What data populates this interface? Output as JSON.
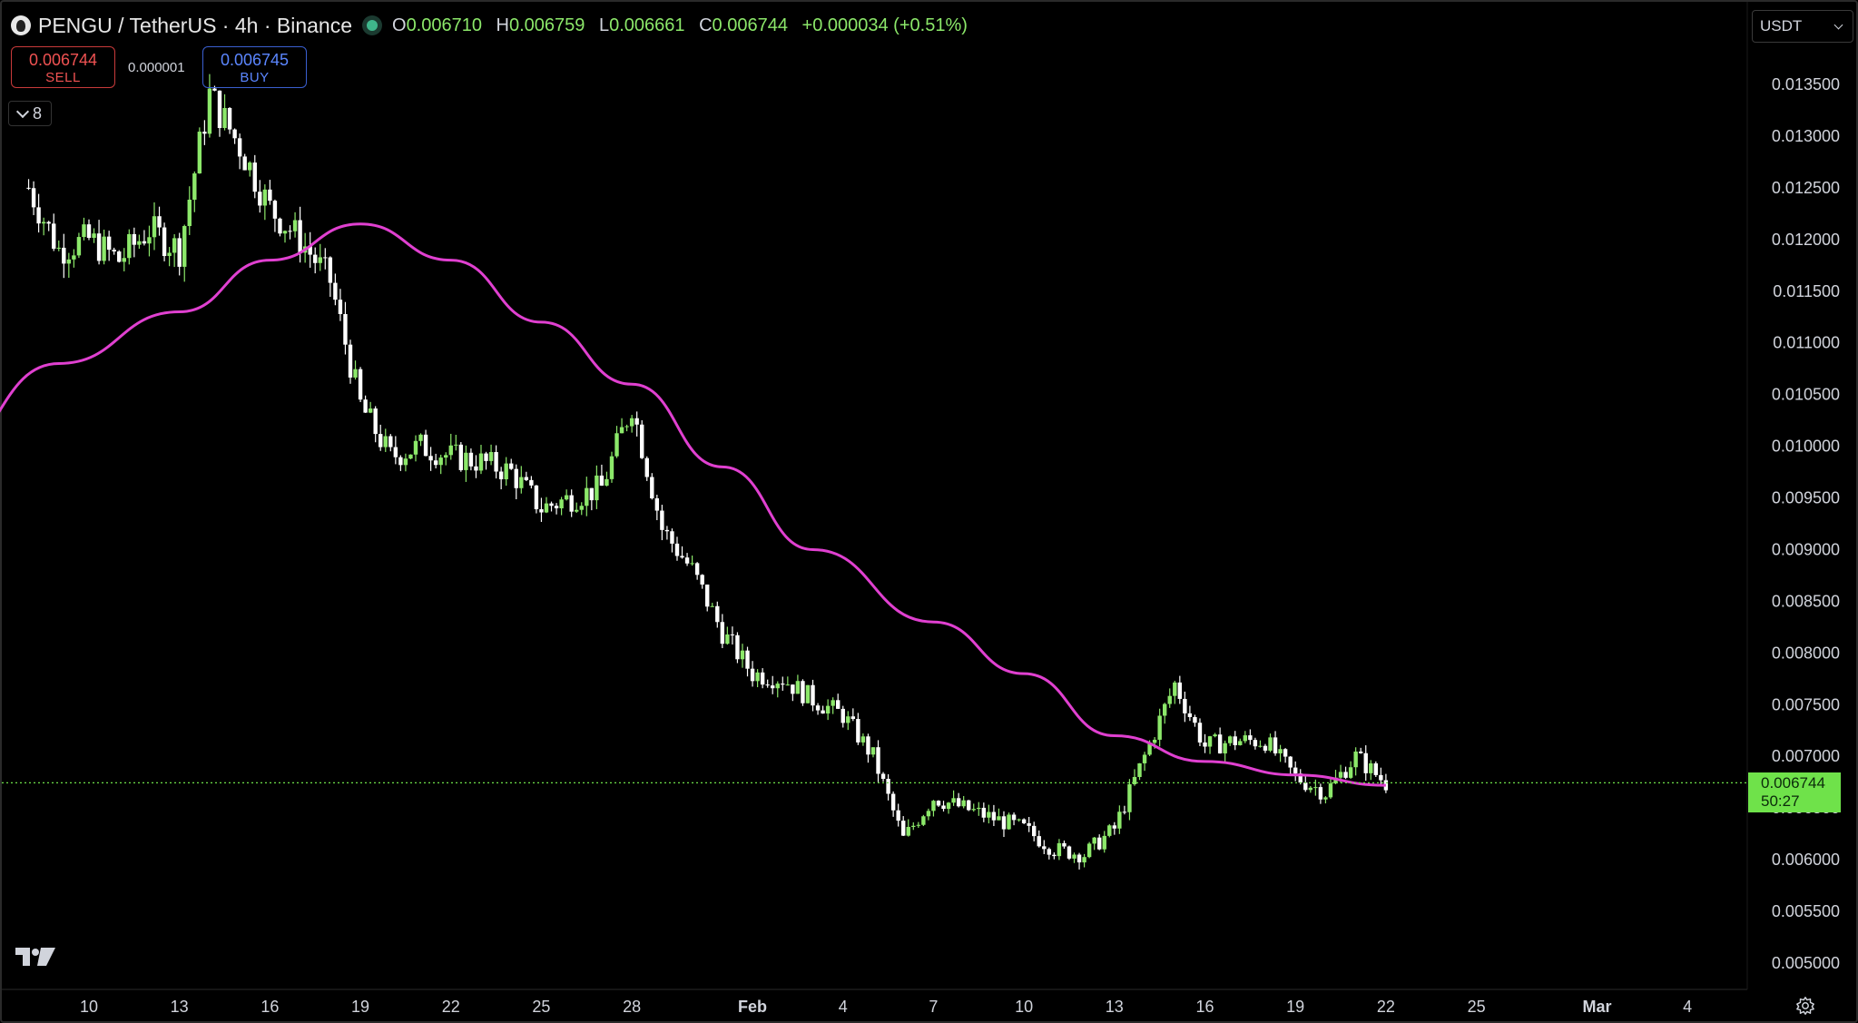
{
  "header": {
    "title": "PENGU / TetherUS · 4h · Binance",
    "ohlc": {
      "o_label": "O",
      "o": "0.006710",
      "h_label": "H",
      "h": "0.006759",
      "l_label": "L",
      "l": "0.006661",
      "c_label": "C",
      "c": "0.006744",
      "change": "+0.000034 (+0.51%)"
    }
  },
  "trade": {
    "sell_price": "0.006744",
    "sell_label": "SELL",
    "spread": "0.000001",
    "buy_price": "0.006745",
    "buy_label": "BUY"
  },
  "indicators_toggle": {
    "count": "8"
  },
  "currency_select": {
    "value": "USDT"
  },
  "last_price_tag": {
    "price": "0.006744",
    "countdown": "50:27"
  },
  "icons": {
    "logo": "pengu-logo-icon",
    "brand": "tradingview-logo-icon",
    "settings": "settings-gear-icon",
    "dropdown": "chevron-down-icon"
  },
  "colors": {
    "up": "#8ce86a",
    "down": "#ffffff",
    "ma": "#e040d0",
    "sell": "#f05252",
    "buy": "#5b86ff",
    "price_tag": "#6fe24a"
  },
  "chart_data": {
    "type": "candlestick",
    "symbol": "PENGU / TetherUS",
    "interval": "4h",
    "exchange": "Binance",
    "y_ticks": [
      "0.005000",
      "0.005500",
      "0.006000",
      "0.006500",
      "0.007000",
      "0.007500",
      "0.008000",
      "0.008500",
      "0.009000",
      "0.009500",
      "0.010000",
      "0.010500",
      "0.011000",
      "0.011500",
      "0.012000",
      "0.012500",
      "0.013000",
      "0.013500"
    ],
    "x_ticks": [
      "10",
      "13",
      "16",
      "19",
      "22",
      "25",
      "28",
      "Feb",
      "4",
      "7",
      "10",
      "13",
      "16",
      "19",
      "22",
      "25",
      "Mar",
      "4"
    ],
    "ylim": [
      0.0049,
      0.0139
    ],
    "grid": false,
    "close_path": [
      [
        "Jan 8",
        0.0125
      ],
      [
        "Jan 9",
        0.0119
      ],
      [
        "Jan 10",
        0.012
      ],
      [
        "Jan 11",
        0.0118
      ],
      [
        "Jan 12",
        0.0121
      ],
      [
        "Jan 13",
        0.0119
      ],
      [
        "Jan 14",
        0.0134
      ],
      [
        "Jan 15",
        0.0129
      ],
      [
        "Jan 16",
        0.0123
      ],
      [
        "Jan 17",
        0.012
      ],
      [
        "Jan 18",
        0.0116
      ],
      [
        "Jan 19",
        0.0104
      ],
      [
        "Jan 20",
        0.0099
      ],
      [
        "Jan 21",
        0.01
      ],
      [
        "Jan 22",
        0.0099
      ],
      [
        "Jan 23",
        0.00985
      ],
      [
        "Jan 24",
        0.00975
      ],
      [
        "Jan 25",
        0.0094
      ],
      [
        "Jan 26",
        0.0095
      ],
      [
        "Jan 27",
        0.0096
      ],
      [
        "Jan 28",
        0.0104
      ],
      [
        "Jan 29",
        0.0092
      ],
      [
        "Jan 30",
        0.0088
      ],
      [
        "Jan 31",
        0.0082
      ],
      [
        "Feb 1",
        0.0078
      ],
      [
        "Feb 2",
        0.00775
      ],
      [
        "Feb 3",
        0.00755
      ],
      [
        "Feb 4",
        0.0074
      ],
      [
        "Feb 5",
        0.007
      ],
      [
        "Feb 6",
        0.0062
      ],
      [
        "Feb 7",
        0.0066
      ],
      [
        "Feb 8",
        0.0065
      ],
      [
        "Feb 9",
        0.0064
      ],
      [
        "Feb 10",
        0.0063
      ],
      [
        "Feb 11",
        0.0061
      ],
      [
        "Feb 12",
        0.00605
      ],
      [
        "Feb 13",
        0.0063
      ],
      [
        "Feb 14",
        0.007
      ],
      [
        "Feb 15",
        0.0077
      ],
      [
        "Feb 16",
        0.0071
      ],
      [
        "Feb 17",
        0.00715
      ],
      [
        "Feb 18",
        0.00715
      ],
      [
        "Feb 19",
        0.0068
      ],
      [
        "Feb 20",
        0.00665
      ],
      [
        "Feb 21",
        0.007
      ],
      [
        "Feb 22",
        0.00674
      ]
    ],
    "moving_average": [
      [
        "Jan 5",
        0.00985
      ],
      [
        "Jan 9",
        0.0108
      ],
      [
        "Jan 13",
        0.0113
      ],
      [
        "Jan 16",
        0.0118
      ],
      [
        "Jan 19",
        0.01215
      ],
      [
        "Jan 22",
        0.0118
      ],
      [
        "Jan 25",
        0.0112
      ],
      [
        "Jan 28",
        0.0106
      ],
      [
        "Jan 31",
        0.0098
      ],
      [
        "Feb 3",
        0.009
      ],
      [
        "Feb 7",
        0.0083
      ],
      [
        "Feb 10",
        0.0078
      ],
      [
        "Feb 13",
        0.0072
      ],
      [
        "Feb 16",
        0.00695
      ],
      [
        "Feb 19",
        0.00682
      ],
      [
        "Feb 22",
        0.00672
      ]
    ],
    "last_price": 0.006744
  }
}
